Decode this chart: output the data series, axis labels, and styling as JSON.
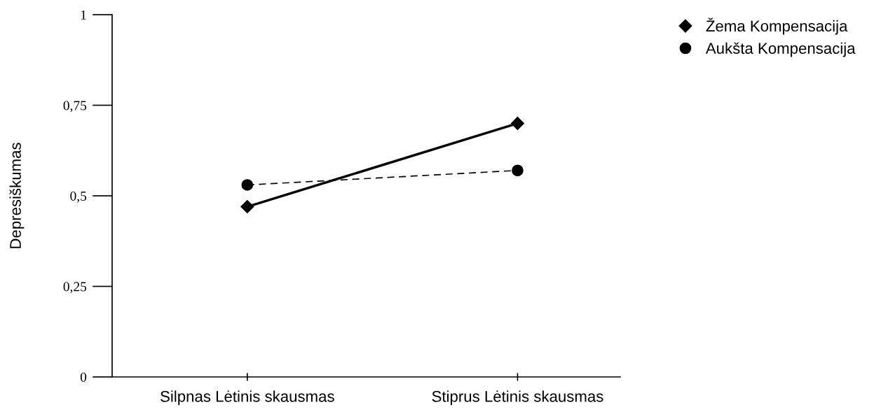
{
  "chart_data": {
    "type": "line",
    "ylabel": "Depresiškumas",
    "categories": [
      "Silpnas Lėtinis skausmas",
      "Stiprus Lėtinis skausmas"
    ],
    "series": [
      {
        "name": "Žema Kompensacija",
        "color": "#000000",
        "values": [
          0.47,
          0.7
        ],
        "marker": "diamond",
        "line_style": "solid"
      },
      {
        "name": "Aukšta Kompensacija",
        "color": "#000000",
        "values": [
          0.53,
          0.57
        ],
        "marker": "circle",
        "line_style": "dashed"
      }
    ],
    "ylim": [
      0,
      1
    ],
    "yticks": [
      {
        "value": 0,
        "label": "0"
      },
      {
        "value": 0.25,
        "label": "0,25"
      },
      {
        "value": 0.5,
        "label": "0,5"
      },
      {
        "value": 0.75,
        "label": "0,75"
      },
      {
        "value": 1,
        "label": "1"
      }
    ],
    "grid": false,
    "legend": "top right"
  }
}
